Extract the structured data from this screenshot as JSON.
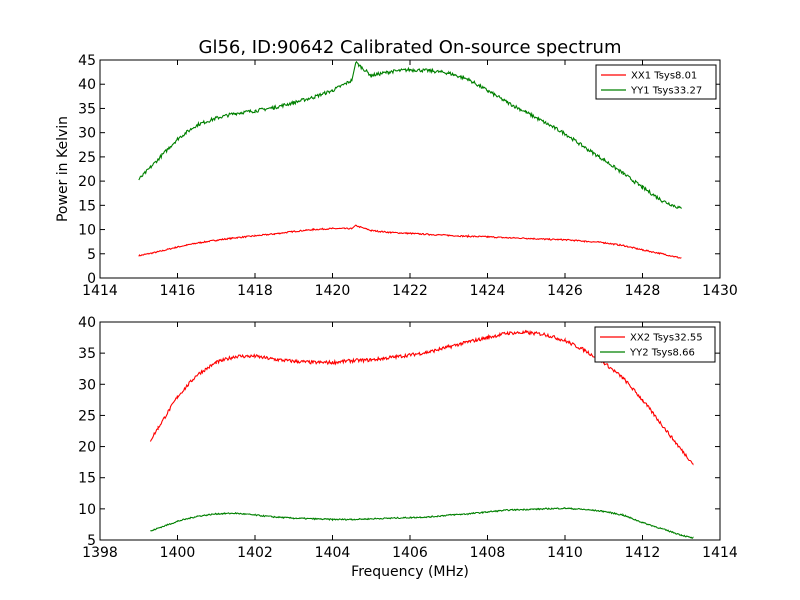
{
  "chart_data": [
    {
      "type": "line",
      "title": "Gl56, ID:90642 Calibrated On-source spectrum",
      "xlabel": "",
      "ylabel": "Power in Kelvin",
      "xlim": [
        1414,
        1430
      ],
      "ylim": [
        0,
        45
      ],
      "xticks": [
        1414,
        1416,
        1418,
        1420,
        1422,
        1424,
        1426,
        1428,
        1430
      ],
      "yticks": [
        0,
        5,
        10,
        15,
        20,
        25,
        30,
        35,
        40,
        45
      ],
      "legend": "top-right",
      "grid": false,
      "series": [
        {
          "name": "XX1 Tsys8.01",
          "color": "#ff0000",
          "x": [
            1415.0,
            1415.5,
            1416.0,
            1416.5,
            1417.0,
            1417.5,
            1418.0,
            1418.5,
            1419.0,
            1419.5,
            1420.0,
            1420.5,
            1420.6,
            1421.0,
            1421.5,
            1422.0,
            1422.5,
            1423.0,
            1423.5,
            1424.0,
            1424.5,
            1425.0,
            1425.5,
            1426.0,
            1426.5,
            1427.0,
            1427.5,
            1428.0,
            1428.5,
            1429.0
          ],
          "y": [
            4.6,
            5.4,
            6.4,
            7.2,
            7.8,
            8.3,
            8.7,
            9.1,
            9.6,
            10.0,
            10.2,
            10.2,
            10.8,
            9.8,
            9.4,
            9.2,
            9.0,
            8.8,
            8.6,
            8.5,
            8.3,
            8.2,
            8.0,
            7.9,
            7.6,
            7.3,
            6.7,
            5.8,
            5.0,
            4.1
          ]
        },
        {
          "name": "YY1 Tsys33.27",
          "color": "#008000",
          "x": [
            1415.0,
            1415.5,
            1416.0,
            1416.5,
            1417.0,
            1417.5,
            1418.0,
            1418.5,
            1419.0,
            1419.5,
            1420.0,
            1420.5,
            1420.6,
            1421.0,
            1421.5,
            1422.0,
            1422.5,
            1423.0,
            1423.5,
            1424.0,
            1424.5,
            1425.0,
            1425.5,
            1426.0,
            1426.5,
            1427.0,
            1427.5,
            1428.0,
            1428.5,
            1429.0
          ],
          "y": [
            20.3,
            24.5,
            28.7,
            31.6,
            33.0,
            34.0,
            34.5,
            35.2,
            36.2,
            37.3,
            38.7,
            40.8,
            44.5,
            41.8,
            42.6,
            43.0,
            42.8,
            42.3,
            41.0,
            38.7,
            36.3,
            34.2,
            32.0,
            29.8,
            27.0,
            24.4,
            21.6,
            18.7,
            16.0,
            14.3
          ]
        }
      ]
    },
    {
      "type": "line",
      "title": "",
      "xlabel": "Frequency (MHz)",
      "ylabel": "",
      "xlim": [
        1398,
        1414
      ],
      "ylim": [
        5,
        40
      ],
      "xticks": [
        1398,
        1400,
        1402,
        1404,
        1406,
        1408,
        1410,
        1412,
        1414
      ],
      "yticks": [
        5,
        10,
        15,
        20,
        25,
        30,
        35,
        40
      ],
      "legend": "top-right",
      "grid": false,
      "series": [
        {
          "name": "XX2 Tsys32.55",
          "color": "#ff0000",
          "x": [
            1399.3,
            1399.5,
            1400.0,
            1400.5,
            1401.0,
            1401.5,
            1402.0,
            1402.5,
            1403.0,
            1403.5,
            1404.0,
            1404.5,
            1405.0,
            1405.5,
            1406.0,
            1406.5,
            1407.0,
            1407.5,
            1408.0,
            1408.5,
            1409.0,
            1409.5,
            1410.0,
            1410.5,
            1411.0,
            1411.5,
            1412.0,
            1412.5,
            1413.0,
            1413.3
          ],
          "y": [
            21.0,
            23.0,
            28.0,
            31.5,
            33.5,
            34.5,
            34.5,
            34.0,
            33.7,
            33.5,
            33.5,
            33.8,
            33.9,
            34.3,
            34.7,
            35.2,
            36.0,
            36.8,
            37.5,
            38.2,
            38.3,
            38.0,
            37.0,
            35.5,
            33.5,
            31.0,
            27.5,
            23.5,
            19.5,
            17.3
          ]
        },
        {
          "name": "YY2 Tsys8.66",
          "color": "#008000",
          "x": [
            1399.3,
            1399.5,
            1400.0,
            1400.5,
            1401.0,
            1401.5,
            1402.0,
            1402.5,
            1403.0,
            1403.5,
            1404.0,
            1404.5,
            1405.0,
            1405.5,
            1406.0,
            1406.5,
            1407.0,
            1407.5,
            1408.0,
            1408.5,
            1409.0,
            1409.5,
            1410.0,
            1410.5,
            1411.0,
            1411.5,
            1412.0,
            1412.5,
            1413.0,
            1413.3
          ],
          "y": [
            6.4,
            6.9,
            8.0,
            8.8,
            9.2,
            9.3,
            9.0,
            8.7,
            8.5,
            8.4,
            8.3,
            8.3,
            8.4,
            8.5,
            8.6,
            8.7,
            9.0,
            9.2,
            9.5,
            9.8,
            9.9,
            10.0,
            10.1,
            9.9,
            9.6,
            9.0,
            7.8,
            6.8,
            5.8,
            5.3
          ]
        }
      ]
    }
  ]
}
